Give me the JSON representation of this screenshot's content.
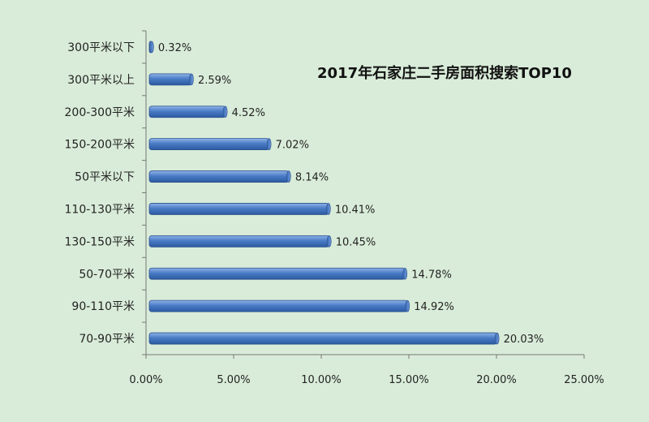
{
  "chart_data": {
    "type": "bar",
    "orientation": "horizontal",
    "title": "2017年石家庄二手房面积搜索TOP10",
    "xlabel": "",
    "ylabel": "",
    "xlim": [
      0,
      25
    ],
    "x_ticks": [
      "0.00%",
      "5.00%",
      "10.00%",
      "15.00%",
      "20.00%",
      "25.00%"
    ],
    "categories": [
      "300平米以下",
      "300平米以上",
      "200-300平米",
      "150-200平米",
      "50平米以下",
      "110-130平米",
      "130-150平米",
      "50-70平米",
      "90-110平米",
      "70-90平米"
    ],
    "values": [
      0.32,
      2.59,
      4.52,
      7.02,
      8.14,
      10.41,
      10.45,
      14.78,
      14.92,
      20.03
    ],
    "value_labels": [
      "0.32%",
      "2.59%",
      "4.52%",
      "7.02%",
      "8.14%",
      "10.41%",
      "10.45%",
      "14.78%",
      "14.92%",
      "20.03%"
    ],
    "grid": false,
    "legend": "none",
    "bar_color": "#4a7cc6",
    "background_color": "#d9ecd9"
  }
}
